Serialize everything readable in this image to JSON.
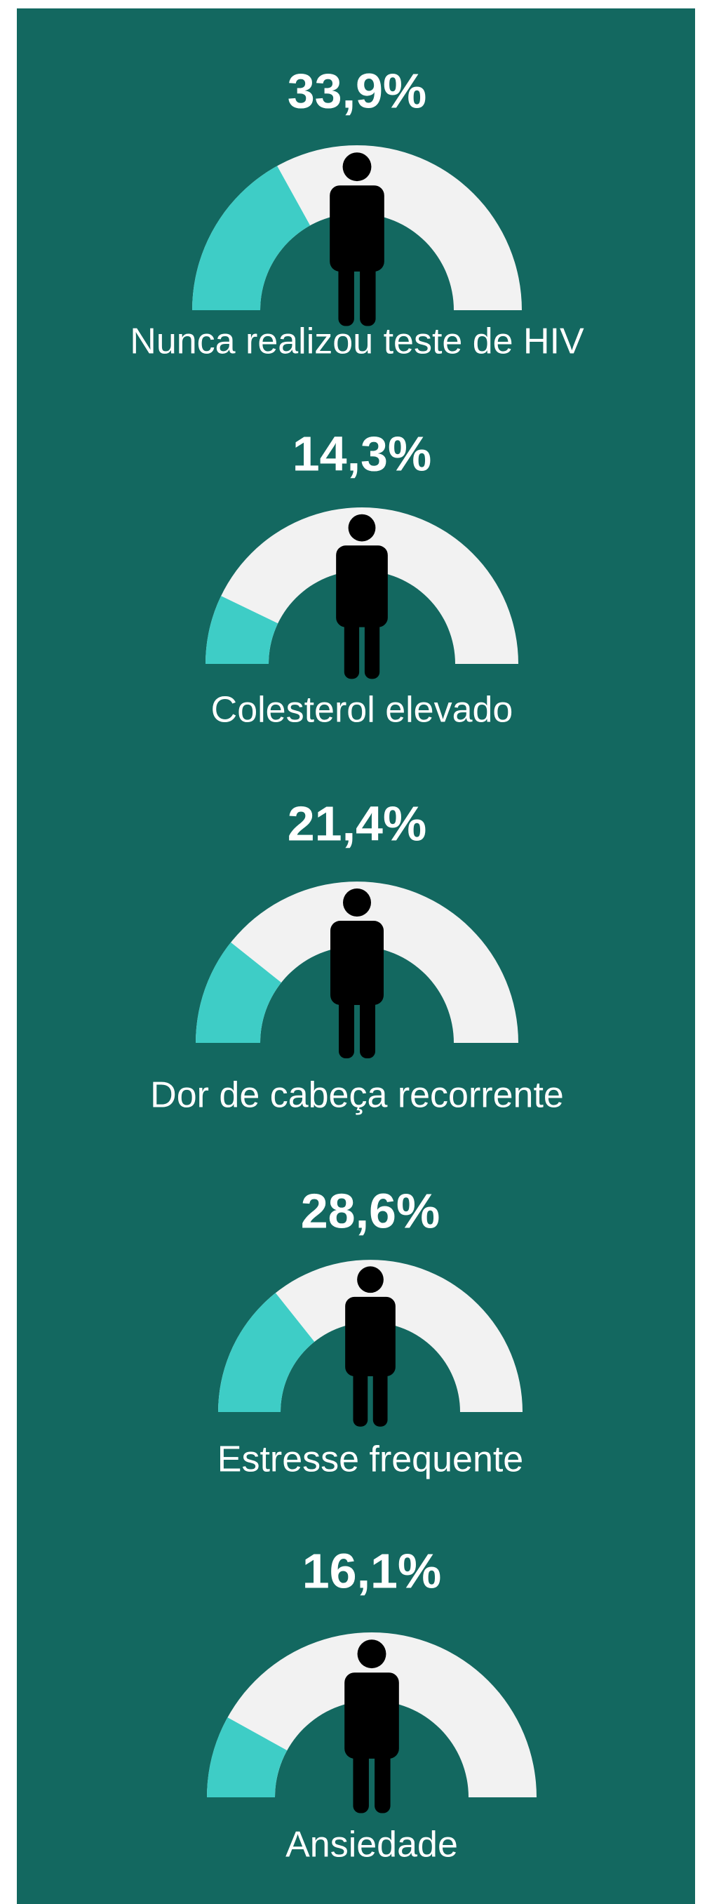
{
  "chart_data": [
    {
      "type": "gauge",
      "categories": [
        "Nunca realizou teste de HIV"
      ],
      "values": [
        33.9
      ],
      "value_labels": [
        "33,9%"
      ],
      "ylim": [
        0,
        100
      ],
      "color": "#3ecdc6"
    },
    {
      "type": "gauge",
      "categories": [
        "Colesterol elevado"
      ],
      "values": [
        14.3
      ],
      "value_labels": [
        "14,3%"
      ],
      "ylim": [
        0,
        100
      ],
      "color": "#3ecdc6"
    },
    {
      "type": "gauge",
      "categories": [
        "Dor de cabeça recorrente"
      ],
      "values": [
        21.4
      ],
      "value_labels": [
        "21,4%"
      ],
      "ylim": [
        0,
        100
      ],
      "color": "#3ecdc6"
    },
    {
      "type": "gauge",
      "categories": [
        "Estresse frequente"
      ],
      "values": [
        28.6
      ],
      "value_labels": [
        "28,6%"
      ],
      "ylim": [
        0,
        100
      ],
      "color": "#3ecdc6"
    },
    {
      "type": "gauge",
      "categories": [
        "Ansiedade"
      ],
      "values": [
        16.1
      ],
      "value_labels": [
        "16,1%"
      ],
      "ylim": [
        0,
        100
      ],
      "color": "#3ecdc6"
    }
  ]
}
